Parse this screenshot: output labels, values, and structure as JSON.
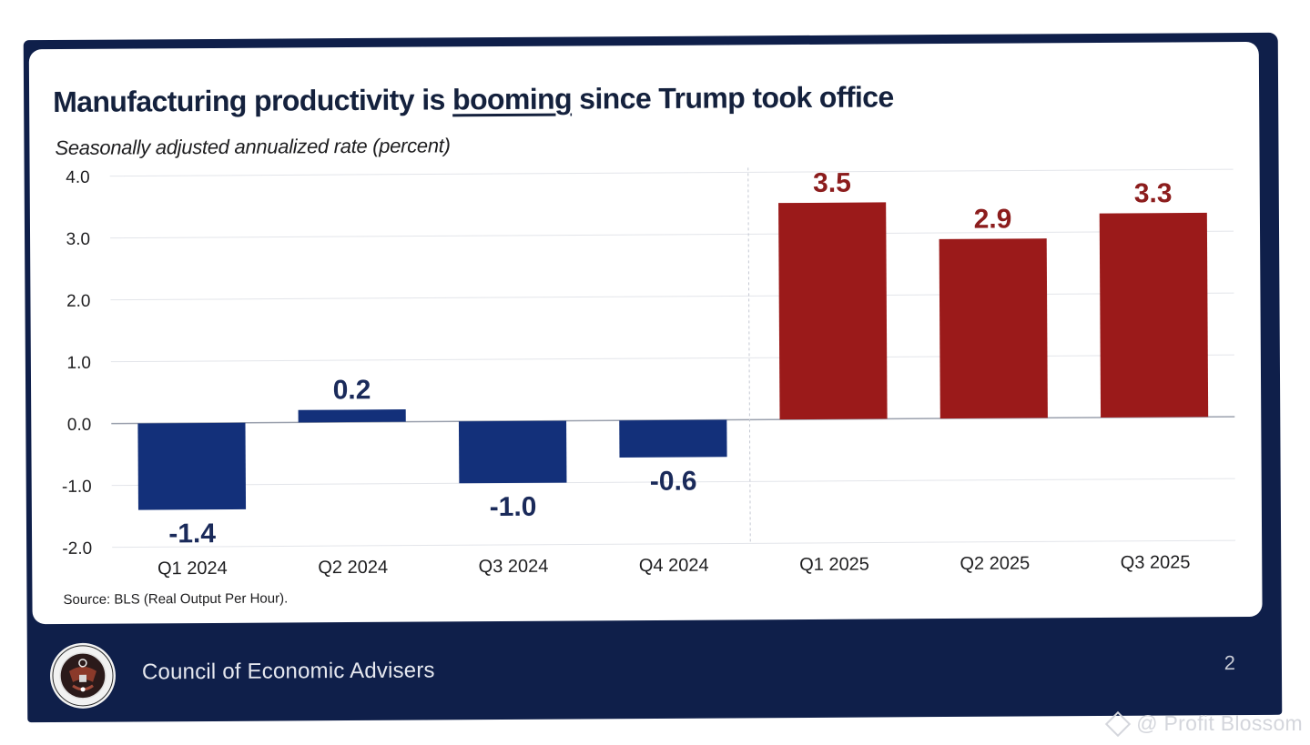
{
  "slide": {
    "title_pre": "Manufacturing productivity is ",
    "title_emph": "booming",
    "title_post": " since Trump took office",
    "subtitle": "Seasonally adjusted annualized rate (percent)",
    "source": "Source: BLS (Real Output Per Hour).",
    "footer_org": "Council of Economic Advisers",
    "page_number": "2",
    "seal_icon": "presidential-seal-icon"
  },
  "watermark": {
    "text": "@ Profit Blossom",
    "icon": "diamond-logo-icon"
  },
  "colors": {
    "frame": "#0f1f4a",
    "pre_bars": "#13307a",
    "post_bars": "#9b1a1a",
    "pre_labels": "#1a2a5a",
    "post_labels": "#8c1d1d",
    "title": "#14213d"
  },
  "chart_data": {
    "type": "bar",
    "title": "Manufacturing productivity is booming since Trump took office",
    "subtitle": "Seasonally adjusted annualized rate (percent)",
    "xlabel": "",
    "ylabel": "Seasonally adjusted annualized rate (percent)",
    "categories": [
      "Q1 2024",
      "Q2 2024",
      "Q3 2024",
      "Q4 2024",
      "Q1 2025",
      "Q2 2025",
      "Q3 2025"
    ],
    "values": [
      -1.4,
      0.2,
      -1.0,
      -0.6,
      3.5,
      2.9,
      3.3
    ],
    "data_labels": [
      "-1.4",
      "0.2",
      "-1.0",
      "-0.6",
      "3.5",
      "2.9",
      "3.3"
    ],
    "groups": [
      "pre",
      "pre",
      "pre",
      "pre",
      "post",
      "post",
      "post"
    ],
    "ylim": [
      -2.0,
      4.0
    ],
    "yticks": [
      4.0,
      3.0,
      2.0,
      1.0,
      0.0,
      -1.0,
      -2.0
    ],
    "ytick_labels": [
      "4.0",
      "3.0",
      "2.0",
      "1.0",
      "0.0",
      "-1.0",
      "-2.0"
    ],
    "grid": true,
    "divider_between": [
      "Q4 2024",
      "Q1 2025"
    ],
    "legend": "none",
    "source": "Source: BLS (Real Output Per Hour)."
  }
}
